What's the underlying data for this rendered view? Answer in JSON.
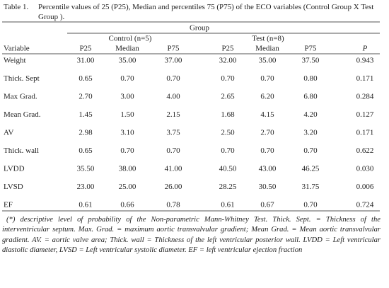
{
  "caption": {
    "label": "Table 1.",
    "text": "Percentile values of 25 (P25), Median and percentiles 75 (P75) of the ECO variables (Control Group X Test Group )."
  },
  "table": {
    "group_header": "Group",
    "groups": [
      "Control (n=5)",
      "Test (n=8)"
    ],
    "columns": [
      "Variable",
      "P25",
      "Median",
      "P75",
      "P25",
      "Median",
      "P75",
      "P"
    ],
    "rows": [
      [
        "Weight",
        "31.00",
        "35.00",
        "37.00",
        "32.00",
        "35.00",
        "37.50",
        "0.943"
      ],
      [
        "Thick. Sept",
        "0.65",
        "0.70",
        "0.70",
        "0.70",
        "0.70",
        "0.80",
        "0.171"
      ],
      [
        "Max Grad.",
        "2.70",
        "3.00",
        "4.00",
        "2.65",
        "6.20",
        "6.80",
        "0.284"
      ],
      [
        "Mean Grad.",
        "1.45",
        "1.50",
        "2.15",
        "1.68",
        "4.15",
        "4.20",
        "0.127"
      ],
      [
        "AV",
        "2.98",
        "3.10",
        "3.75",
        "2.50",
        "2.70",
        "3.20",
        "0.171"
      ],
      [
        "Thick. wall",
        "0.65",
        "0.70",
        "0.70",
        "0.70",
        "0.70",
        "0.70",
        "0.622"
      ],
      [
        "LVDD",
        "35.50",
        "38.00",
        "41.00",
        "40.50",
        "43.00",
        "46.25",
        "0.030"
      ],
      [
        "LVSD",
        "23.00",
        "25.00",
        "26.00",
        "28.25",
        "30.50",
        "31.75",
        "0.006"
      ],
      [
        "EF",
        "0.61",
        "0.66",
        "0.78",
        "0.61",
        "0.67",
        "0.70",
        "0.724"
      ]
    ]
  },
  "footnote": "(*) descriptive level of probability of the Non-parametric Mann-Whitney Test. Thick. Sept. = Thickness of the interventricular septum. Max. Grad. = maximum aortic transvalvular gradient; Mean Grad. = Mean aortic transvalvular gradient. AV. = aortic valve area; Thick. wall = Thickness of the left ventricular posterior wall. LVDD = Left ventricular diastolic diameter, LVSD = Left ventricular systolic diameter. EF = left ventricular ejection fraction"
}
